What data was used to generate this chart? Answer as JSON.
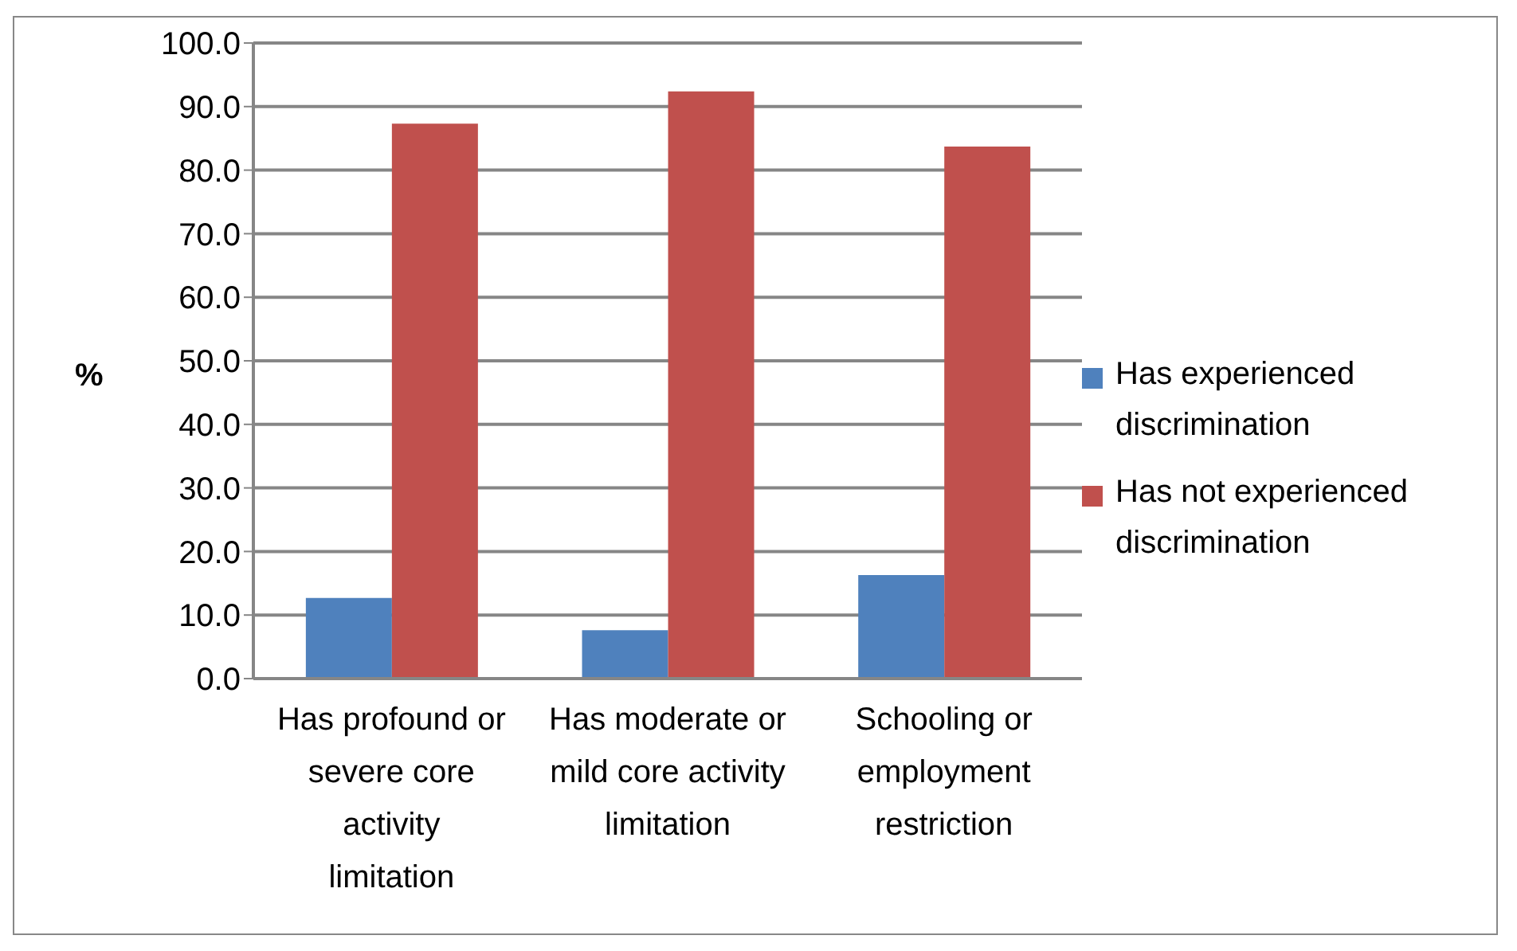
{
  "chart_data": {
    "type": "bar",
    "ylabel": "%",
    "categories": [
      "Has profound or severe core activity limitation",
      "Has moderate or mild core activity limitation",
      "Schooling or employment restriction"
    ],
    "series": [
      {
        "name": "Has experienced discrimination",
        "color": "#4f81bd",
        "values": [
          12.7,
          7.6,
          16.3
        ]
      },
      {
        "name": "Has not experienced discrimination",
        "color": "#c0504d",
        "values": [
          87.3,
          92.4,
          83.7
        ]
      }
    ],
    "ylim": [
      0,
      100
    ],
    "yticks": [
      {
        "value": 0,
        "label": "0.0"
      },
      {
        "value": 10,
        "label": "10.0"
      },
      {
        "value": 20,
        "label": "20.0"
      },
      {
        "value": 30,
        "label": "30.0"
      },
      {
        "value": 40,
        "label": "40.0"
      },
      {
        "value": 50,
        "label": "50.0"
      },
      {
        "value": 60,
        "label": "60.0"
      },
      {
        "value": 70,
        "label": "70.0"
      },
      {
        "value": 80,
        "label": "80.0"
      },
      {
        "value": 90,
        "label": "90.0"
      },
      {
        "value": 100,
        "label": "100.0"
      }
    ],
    "grid": "y",
    "legend": "right"
  }
}
